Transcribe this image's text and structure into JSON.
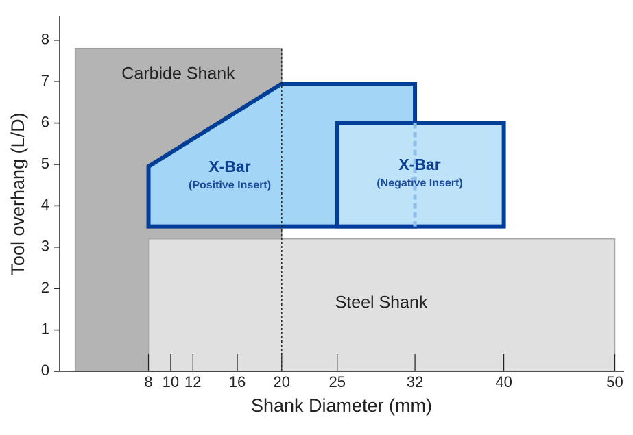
{
  "chart_data": {
    "type": "region",
    "x_label": "Shank Diameter (mm)",
    "y_label": "Tool overhang (L/D)",
    "xlim": [
      0,
      50.5
    ],
    "ylim": [
      0,
      8.5
    ],
    "xticks": [
      8,
      10,
      12,
      16,
      20,
      25,
      32,
      40,
      50
    ],
    "yticks": [
      0,
      1,
      2,
      3,
      4,
      5,
      6,
      7,
      8
    ],
    "regions": [
      {
        "name": "Carbide Shank",
        "color": "#b4b4b4",
        "stroke": "#8c8c8c",
        "x": [
          1.4,
          20,
          20,
          1.4
        ],
        "y": [
          0,
          0,
          7.8,
          7.8
        ]
      },
      {
        "name": "Steel Shank",
        "color": "#e0e0e0",
        "stroke": "#a8a8a8",
        "x": [
          8,
          50,
          50,
          8
        ],
        "y": [
          0,
          0,
          3.2,
          3.2
        ]
      },
      {
        "name": "X-Bar",
        "sublabel": "(Positive Insert)",
        "color": "#a2d5f6",
        "stroke": "#003e98",
        "x": [
          8,
          8,
          20,
          32,
          32
        ],
        "y": [
          3.5,
          4.95,
          6.95,
          6.95,
          3.5
        ]
      },
      {
        "name": "X-Bar",
        "sublabel": "(Negative Insert)",
        "color": "#bee3f8",
        "stroke": "#003e98",
        "x": [
          25,
          25,
          40,
          40
        ],
        "y": [
          3.5,
          6,
          6,
          3.5
        ]
      }
    ],
    "vlines": [
      {
        "x": 20,
        "from": 0,
        "to": 7.8,
        "color": "#222222",
        "dash": "3 3"
      },
      {
        "x": 32,
        "from": 3.5,
        "to": 6,
        "color": "#8fbfea",
        "dash": "8 5"
      }
    ]
  }
}
